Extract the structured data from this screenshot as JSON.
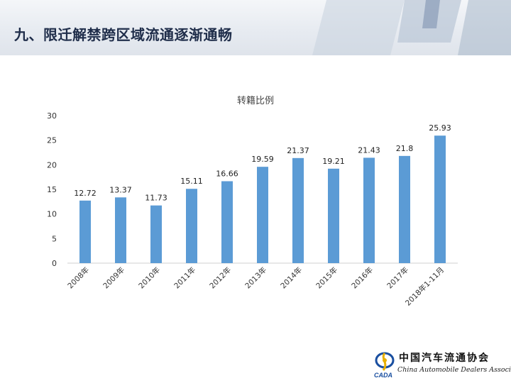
{
  "header": {
    "title": "九、限迁解禁跨区域流通逐渐通畅"
  },
  "chart_data": {
    "type": "bar",
    "title": "转籍比例",
    "categories": [
      "2008年",
      "2009年",
      "2010年",
      "2011年",
      "2012年",
      "2013年",
      "2014年",
      "2015年",
      "2016年",
      "2017年",
      "2018年1-11月"
    ],
    "values": [
      12.72,
      13.37,
      11.73,
      15.11,
      16.66,
      19.59,
      21.37,
      19.21,
      21.43,
      21.8,
      25.93
    ],
    "value_labels": [
      "12.72",
      "13.37",
      "11.73",
      "15.11",
      "16.66",
      "19.59",
      "21.37",
      "19.21",
      "21.43",
      "21.8",
      "25.93"
    ],
    "y_ticks": [
      0,
      5,
      10,
      15,
      20,
      25,
      30
    ],
    "ylim": [
      0,
      30
    ],
    "grid": false,
    "legend": false,
    "bar_color": "#5b9bd5"
  },
  "logo": {
    "name_cn": "中国汽车流通协会",
    "name_en": "China Automobile Dealers Association",
    "abbr": "CADA"
  }
}
